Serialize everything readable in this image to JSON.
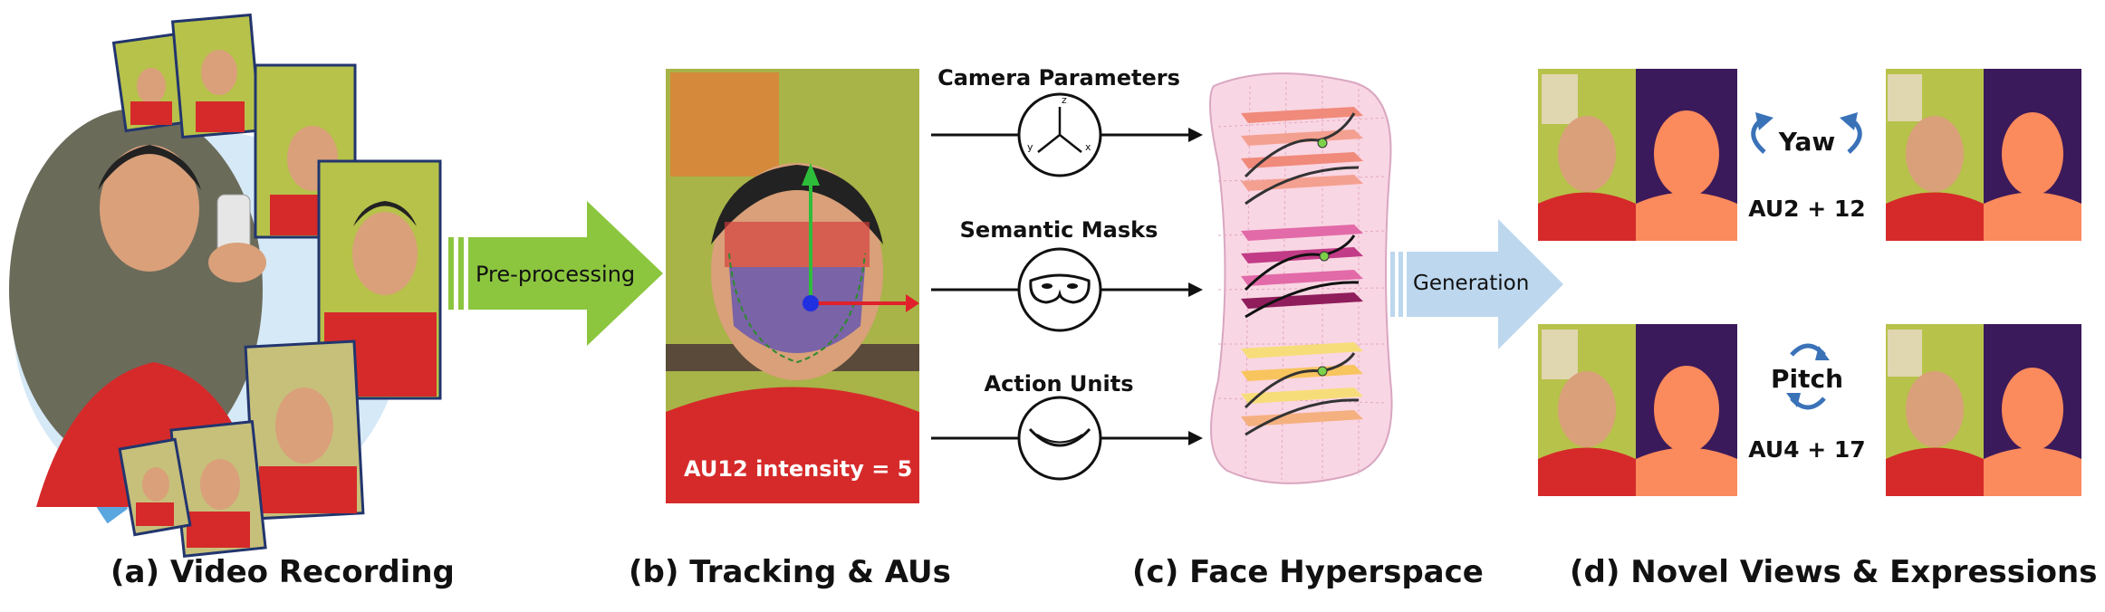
{
  "captions": {
    "a": "(a) Video Recording",
    "b": "(b) Tracking & AUs",
    "c": "(c) Face Hyperspace",
    "d": "(d) Novel Views & Expressions"
  },
  "arrows": {
    "preprocessing": "Pre-processing",
    "generation": "Generation"
  },
  "inputs": {
    "camera": "Camera Parameters",
    "masks": "Semantic Masks",
    "aus": "Action Units"
  },
  "axes": {
    "x": "x",
    "y": "y",
    "z": "z"
  },
  "tracking": {
    "au_text": "AU12 intensity = 5"
  },
  "novel": {
    "yaw": "Yaw",
    "pitch": "Pitch",
    "au_top": "AU2 + 12",
    "au_bottom": "AU4 + 17"
  },
  "colors": {
    "green_arrow": "#8cc63f",
    "blue_arrow": "#bdd7ee",
    "photo_red_shirt": "#d62a2a",
    "wall_green": "#b7c24a",
    "hyperspace_pink": "#f9d6e3"
  }
}
